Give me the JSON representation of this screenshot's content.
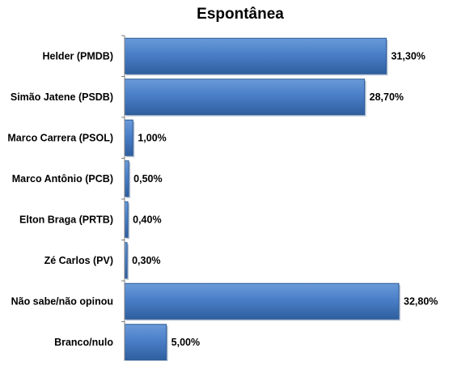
{
  "chart_data": {
    "type": "bar",
    "orientation": "horizontal",
    "title": "Espontânea",
    "xlabel": "",
    "ylabel": "",
    "categories": [
      "Helder (PMDB)",
      "Simão Jatene (PSDB)",
      "Marco Carrera (PSOL)",
      "Marco Antônio (PCB)",
      "Elton Braga (PRTB)",
      "Zé Carlos (PV)",
      "Não sabe/não opinou",
      "Branco/nulo"
    ],
    "values": [
      31.3,
      28.7,
      1.0,
      0.5,
      0.4,
      0.3,
      32.8,
      5.0
    ],
    "value_labels": [
      "31,30%",
      "28,70%",
      "1,00%",
      "0,50%",
      "0,40%",
      "0,30%",
      "32,80%",
      "5,00%"
    ],
    "xlim": [
      0,
      32.8
    ],
    "grid": false,
    "legend": "none",
    "colors": {
      "bar_fill": "#4a7fc8",
      "bar_fill_light": "#6a9ad8",
      "bar_fill_dark": "#2f5f9e",
      "bar_stroke": "#2b5a95",
      "axis": "#7f7f7f",
      "text": "#000000"
    }
  }
}
